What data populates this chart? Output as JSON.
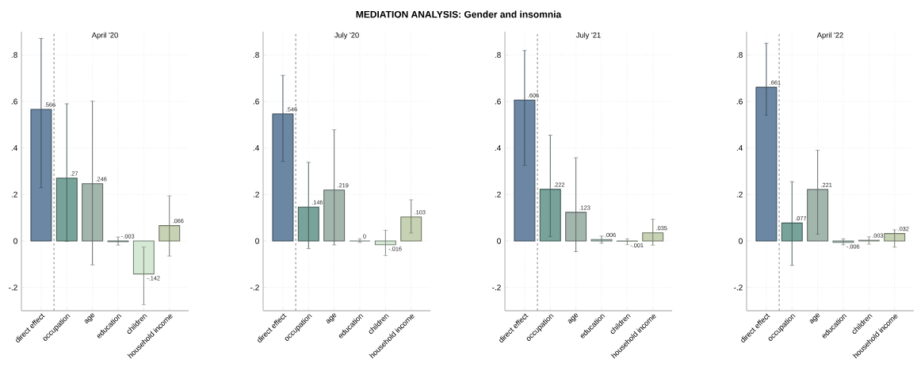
{
  "chart_data": [
    {
      "type": "other",
      "title": "MEDIATION ANALYSIS: Gender and insomnia"
    },
    {
      "type": "bar",
      "title": "April '20",
      "categories": [
        "direct effect",
        "occupation",
        "age",
        "education",
        "children",
        "household income"
      ],
      "values": [
        0.566,
        0.27,
        0.246,
        -0.003,
        -0.142,
        0.066
      ],
      "value_labels": [
        ".566",
        ".27",
        ".246",
        "-.003",
        "-.142",
        ".066"
      ],
      "errors": [
        [
          0.229,
          0.871
        ],
        [
          -0.002,
          0.59
        ],
        [
          -0.103,
          0.601
        ],
        [
          -0.018,
          0.017
        ],
        [
          -0.274,
          -0.026
        ],
        [
          -0.065,
          0.194
        ]
      ],
      "colors": [
        "#6b87a3",
        "#77a39a",
        "#a3b6ad",
        "#b3cfc8",
        "#d5e8d4",
        "#c6d2b3"
      ],
      "ylim": [
        -0.3,
        0.9
      ],
      "yticks": [
        {
          "value": -0.2,
          "label": "-.2"
        },
        {
          "value": 0,
          "label": "0"
        },
        {
          "value": 0.2,
          "label": ".2"
        },
        {
          "value": 0.4,
          "label": ".4"
        },
        {
          "value": 0.6,
          "label": ".6"
        },
        {
          "value": 0.8,
          "label": ".8"
        }
      ],
      "grid": true
    },
    {
      "type": "bar",
      "title": "July '20",
      "categories": [
        "direct effect",
        "occupation",
        "age",
        "education",
        "children",
        "household income"
      ],
      "values": [
        0.546,
        0.146,
        0.219,
        0,
        -0.016,
        0.103
      ],
      "value_labels": [
        ".546",
        ".146",
        ".219",
        "0",
        "-.016",
        ".103"
      ],
      "errors": [
        [
          0.342,
          0.712
        ],
        [
          -0.033,
          0.338
        ],
        [
          -0.017,
          0.478
        ],
        [
          -0.006,
          0.009
        ],
        [
          -0.063,
          0.046
        ],
        [
          0.034,
          0.177
        ]
      ],
      "colors": [
        "#6b87a3",
        "#77a39a",
        "#a3b6ad",
        "#b3cfc8",
        "#d5e8d4",
        "#c6d2b3"
      ],
      "ylim": [
        -0.3,
        0.9
      ],
      "yticks": [
        {
          "value": -0.2,
          "label": "-.2"
        },
        {
          "value": 0,
          "label": "0"
        },
        {
          "value": 0.2,
          "label": ".2"
        },
        {
          "value": 0.4,
          "label": ".4"
        },
        {
          "value": 0.6,
          "label": ".6"
        },
        {
          "value": 0.8,
          "label": ".8"
        }
      ],
      "grid": true
    },
    {
      "type": "bar",
      "title": "July '21",
      "categories": [
        "direct effect",
        "occupation",
        "age",
        "education",
        "children",
        "household income"
      ],
      "values": [
        0.606,
        0.222,
        0.123,
        0.006,
        -0.001,
        0.035
      ],
      "value_labels": [
        ".606",
        ".222",
        ".123",
        ".006",
        "-.001",
        ".035"
      ],
      "errors": [
        [
          0.325,
          0.819
        ],
        [
          0.019,
          0.455
        ],
        [
          -0.046,
          0.358
        ],
        [
          -0.01,
          0.021
        ],
        [
          -0.016,
          0.009
        ],
        [
          -0.018,
          0.094
        ]
      ],
      "colors": [
        "#6b87a3",
        "#77a39a",
        "#a3b6ad",
        "#b3cfc8",
        "#d5e8d4",
        "#c6d2b3"
      ],
      "ylim": [
        -0.3,
        0.9
      ],
      "yticks": [
        {
          "value": -0.2,
          "label": "-.2"
        },
        {
          "value": 0,
          "label": "0"
        },
        {
          "value": 0.2,
          "label": ".2"
        },
        {
          "value": 0.4,
          "label": ".4"
        },
        {
          "value": 0.6,
          "label": ".6"
        },
        {
          "value": 0.8,
          "label": ".8"
        }
      ],
      "grid": true
    },
    {
      "type": "bar",
      "title": "April '22",
      "categories": [
        "direct effect",
        "occupation",
        "age",
        "education",
        "children",
        "household income"
      ],
      "values": [
        0.661,
        0.077,
        0.221,
        -0.006,
        0.003,
        0.032
      ],
      "value_labels": [
        ".661",
        ".077",
        ".221",
        "-.006",
        ".003",
        ".032"
      ],
      "errors": [
        [
          0.541,
          0.85
        ],
        [
          -0.105,
          0.255
        ],
        [
          0.029,
          0.39
        ],
        [
          -0.017,
          0.009
        ],
        [
          -0.014,
          0.018
        ],
        [
          -0.027,
          0.048
        ]
      ],
      "colors": [
        "#6b87a3",
        "#77a39a",
        "#a3b6ad",
        "#b3cfc8",
        "#d5e8d4",
        "#c6d2b3"
      ],
      "ylim": [
        -0.3,
        0.9
      ],
      "yticks": [
        {
          "value": -0.2,
          "label": "-.2"
        },
        {
          "value": 0,
          "label": "0"
        },
        {
          "value": 0.2,
          "label": ".2"
        },
        {
          "value": 0.4,
          "label": ".4"
        },
        {
          "value": 0.6,
          "label": ".6"
        },
        {
          "value": 0.8,
          "label": ".8"
        }
      ],
      "grid": true
    }
  ]
}
